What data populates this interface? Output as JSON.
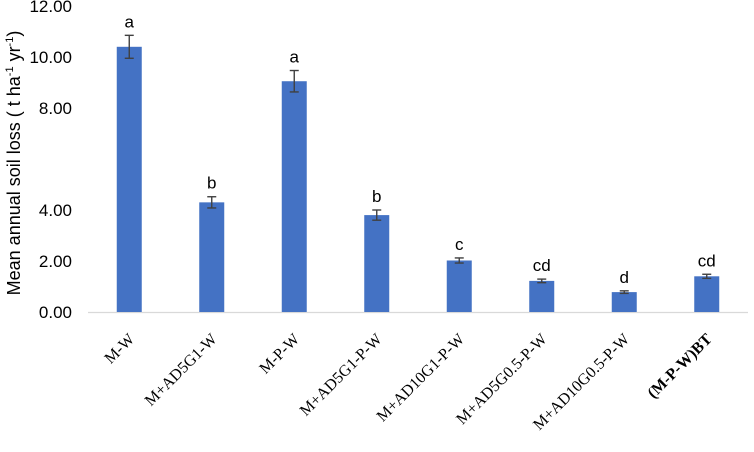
{
  "chart_data": {
    "type": "bar",
    "ylabel": "Mean annual soil loss ( t ha-1 yr-1)",
    "ylabel_parts": {
      "main": "Mean annual soil loss ( t ha",
      "sup1": "-1",
      "mid": " yr",
      "sup2": "-1",
      "end": ")"
    },
    "xlabel": "",
    "ylim": [
      0,
      12
    ],
    "yticks": [
      {
        "value": 0,
        "label": "0.00"
      },
      {
        "value": 2,
        "label": "2.00"
      },
      {
        "value": 4,
        "label": "4.00"
      },
      {
        "value": 8,
        "label": "8.00"
      },
      {
        "value": 10,
        "label": "10.00"
      },
      {
        "value": 12,
        "label": "12.00"
      }
    ],
    "bar_color": "#4472c4",
    "categories": [
      "M-W",
      "M+AD5G1-W",
      "M-P-W",
      "M+AD5G1-P-W",
      "M+AD10G1-P-W",
      "M+AD5G0.5-P-W",
      "M+AD10G0.5-P-W",
      "(M-P-W)BT"
    ],
    "bold_categories": [
      "(M-P-W)BT"
    ],
    "values": [
      10.4,
      4.3,
      9.05,
      3.8,
      2.02,
      1.22,
      0.78,
      1.4
    ],
    "errors": [
      0.45,
      0.22,
      0.42,
      0.2,
      0.1,
      0.07,
      0.05,
      0.08
    ],
    "labels": [
      "a",
      "b",
      "a",
      "b",
      "c",
      "cd",
      "d",
      "cd"
    ],
    "grid": false,
    "legend": "none"
  }
}
